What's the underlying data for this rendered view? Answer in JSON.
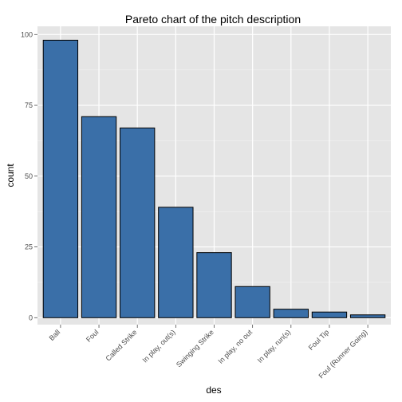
{
  "chart_data": {
    "type": "bar",
    "title": "Pareto chart of the pitch description",
    "xlabel": "des",
    "ylabel": "count",
    "categories": [
      "Ball",
      "Foul",
      "Called Strike",
      "In play, out(s)",
      "Swinging Strike",
      "In play, no out",
      "In play, run(s)",
      "Foul Tip",
      "Foul (Runner Going)"
    ],
    "values": [
      98,
      71,
      67,
      39,
      23,
      11,
      3,
      2,
      1
    ],
    "ylim": [
      -2.45,
      102.9
    ],
    "yticks": [
      0,
      25,
      50,
      75,
      100
    ],
    "grid": true,
    "legend": "none",
    "colors": {
      "bar_fill": "#3a6fa8",
      "bar_stroke": "#000000",
      "panel_background": "#e5e5e5",
      "grid_major": "#ffffff",
      "grid_minor": "#f2f2f2"
    }
  }
}
